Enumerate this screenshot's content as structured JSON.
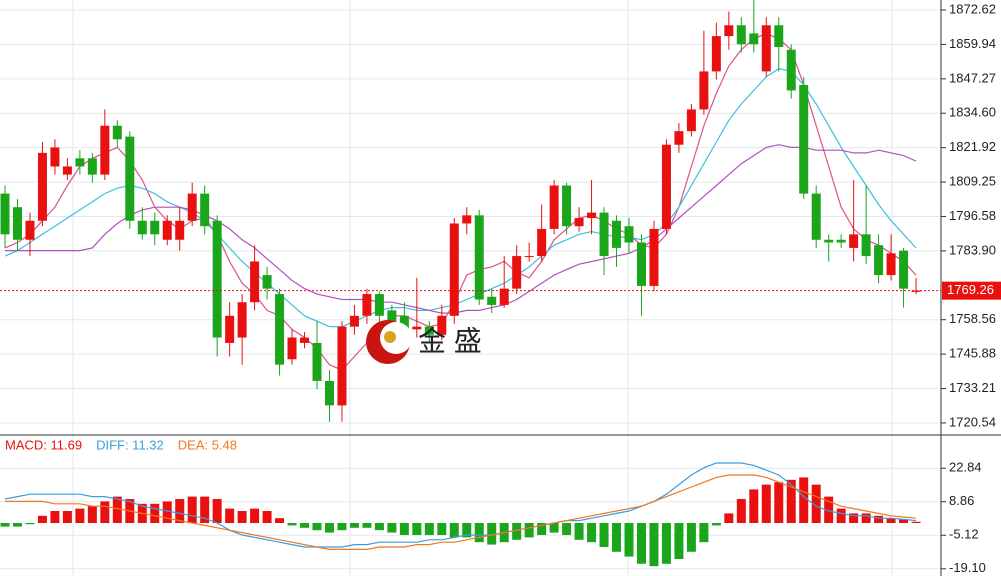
{
  "chart_data": [
    {
      "type": "candlestick",
      "open": [
        1805,
        1800,
        1788,
        1795,
        1815,
        1812,
        1818,
        1818,
        1812,
        1830,
        1826,
        1795,
        1795,
        1788,
        1788,
        1795,
        1805,
        1795,
        1750,
        1752,
        1765,
        1775,
        1768,
        1744,
        1750,
        1750,
        1736,
        1727,
        1756,
        1760,
        1768,
        1762,
        1760,
        1755,
        1756,
        1753,
        1760,
        1794,
        1797,
        1767,
        1764,
        1770,
        1782,
        1782,
        1792,
        1808,
        1793,
        1796,
        1798,
        1795,
        1793,
        1787,
        1771,
        1792,
        1823,
        1828,
        1836,
        1850,
        1863,
        1867,
        1864,
        1850,
        1867,
        1858,
        1845,
        1805,
        1788,
        1788,
        1785,
        1790,
        1786,
        1775,
        1784,
        1768.8
      ],
      "high": [
        1808,
        1803,
        1798,
        1824,
        1825,
        1818,
        1821,
        1820,
        1836,
        1832,
        1828,
        1800,
        1798,
        1797,
        1800,
        1809,
        1808,
        1797,
        1765,
        1768,
        1786,
        1778,
        1770,
        1755,
        1754,
        1758,
        1740,
        1758,
        1764,
        1770,
        1769,
        1764,
        1765,
        1774,
        1758,
        1764,
        1796,
        1800,
        1799,
        1770,
        1782,
        1786,
        1787,
        1801,
        1810,
        1809,
        1800,
        1810,
        1800,
        1797,
        1796,
        1790,
        1795,
        1825,
        1831,
        1838,
        1865,
        1868,
        1872,
        1870,
        1877,
        1870,
        1870,
        1860,
        1848,
        1808,
        1790,
        1790,
        1810,
        1808,
        1790,
        1790,
        1785,
        1774
      ],
      "low": [
        1785,
        1784,
        1782,
        1793,
        1812,
        1810,
        1812,
        1809,
        1810,
        1822,
        1792,
        1788,
        1786,
        1786,
        1784,
        1793,
        1790,
        1745,
        1745,
        1742,
        1762,
        1766,
        1738,
        1742,
        1748,
        1733,
        1721,
        1721,
        1753,
        1757,
        1757,
        1755,
        1753,
        1752,
        1750,
        1751,
        1757,
        1790,
        1764,
        1761,
        1763,
        1768,
        1780,
        1780,
        1790,
        1790,
        1791,
        1790,
        1775,
        1778,
        1783,
        1760,
        1769,
        1790,
        1820,
        1826,
        1834,
        1847,
        1858,
        1857,
        1857,
        1848,
        1850,
        1840,
        1803,
        1785,
        1780,
        1785,
        1780,
        1779,
        1772,
        1773,
        1763,
        1768
      ],
      "close": [
        1790,
        1788,
        1795,
        1820,
        1822,
        1815,
        1815,
        1812,
        1830,
        1825,
        1795,
        1790,
        1790,
        1795,
        1795,
        1805,
        1793,
        1752,
        1760,
        1765,
        1780,
        1770,
        1742,
        1752,
        1752,
        1736,
        1727,
        1756,
        1760,
        1768,
        1760,
        1758,
        1755,
        1756,
        1753,
        1760,
        1794,
        1797,
        1766,
        1764,
        1770,
        1782,
        1782,
        1792,
        1808,
        1793,
        1796,
        1798,
        1782,
        1785,
        1787,
        1771,
        1792,
        1823,
        1828,
        1836,
        1850,
        1863,
        1867,
        1860,
        1860,
        1867,
        1859,
        1843,
        1805,
        1788,
        1787,
        1787,
        1790,
        1782,
        1775,
        1783,
        1770,
        1769.26
      ],
      "up_color": "#e8110f",
      "down_color": "#1aa51a",
      "lines": [
        {
          "color": "#e0508a",
          "values": [
            1785,
            1787,
            1790,
            1795,
            1800,
            1808,
            1815,
            1818,
            1820,
            1822,
            1817,
            1810,
            1800,
            1795,
            1792,
            1795,
            1796,
            1790,
            1780,
            1772,
            1768,
            1762,
            1760,
            1755,
            1752,
            1748,
            1742,
            1740,
            1745,
            1750,
            1755,
            1760,
            1760,
            1758,
            1756,
            1757,
            1765,
            1775,
            1777,
            1778,
            1780,
            1776,
            1774,
            1780,
            1788,
            1792,
            1796,
            1797,
            1795,
            1792,
            1790,
            1786,
            1785,
            1790,
            1800,
            1815,
            1830,
            1842,
            1852,
            1858,
            1862,
            1864,
            1862,
            1858,
            1845,
            1830,
            1815,
            1800,
            1792,
            1788,
            1786,
            1783,
            1780,
            1775
          ]
        },
        {
          "color": "#3cc0e0",
          "values": [
            1782,
            1784,
            1787,
            1790,
            1793,
            1796,
            1799,
            1802,
            1805,
            1807,
            1808,
            1807,
            1805,
            1802,
            1800,
            1798,
            1795,
            1790,
            1785,
            1780,
            1776,
            1772,
            1768,
            1764,
            1760,
            1758,
            1756,
            1756,
            1758,
            1760,
            1762,
            1763,
            1763,
            1762,
            1762,
            1763,
            1764,
            1766,
            1768,
            1770,
            1772,
            1775,
            1778,
            1782,
            1786,
            1788,
            1790,
            1791,
            1790,
            1789,
            1789,
            1788,
            1790,
            1794,
            1800,
            1808,
            1816,
            1824,
            1832,
            1838,
            1843,
            1848,
            1851,
            1850,
            1845,
            1838,
            1830,
            1822,
            1815,
            1808,
            1801,
            1795,
            1790,
            1785
          ]
        },
        {
          "color": "#b050c0",
          "values": [
            1784,
            1784,
            1784,
            1784,
            1784,
            1784,
            1784,
            1785,
            1790,
            1794,
            1797,
            1799,
            1800,
            1800,
            1800,
            1799,
            1797,
            1795,
            1792,
            1788,
            1785,
            1781,
            1777,
            1773,
            1770,
            1768,
            1767,
            1766,
            1766,
            1766,
            1765,
            1765,
            1764,
            1763,
            1762,
            1761,
            1761,
            1762,
            1762,
            1763,
            1764,
            1766,
            1769,
            1772,
            1775,
            1777,
            1779,
            1780,
            1781,
            1782,
            1783,
            1785,
            1788,
            1792,
            1796,
            1800,
            1804,
            1808,
            1812,
            1816,
            1819,
            1822,
            1823,
            1822,
            1822,
            1821,
            1821,
            1821,
            1820,
            1820,
            1821,
            1820,
            1819,
            1817
          ]
        }
      ],
      "ylim": [
        1716.1,
        1876.3
      ],
      "yticks": [
        1872.62,
        1859.94,
        1847.27,
        {
          "value": 1834.6,
          "label": "1834.60"
        },
        1821.92,
        1809.25,
        1796.58,
        {
          "value": 1783.9,
          "label": "1783.90"
        },
        1758.56,
        1745.88,
        1733.21,
        1720.54
      ],
      "last_price": 1769.26,
      "grid": true,
      "watermark": "金 盛"
    },
    {
      "type": "macd",
      "legend": [
        {
          "text": "MACD: 11.69",
          "color": "#e8110f"
        },
        {
          "text": "DIFF: 11.32",
          "color": "#3a9ee0"
        },
        {
          "text": "DEA: 5.48",
          "color": "#f07820"
        }
      ],
      "histogram": [
        -1.5,
        -1.5,
        -0.5,
        3,
        5,
        5,
        6,
        7,
        9,
        11,
        10,
        8,
        8,
        9,
        10,
        11,
        11,
        10,
        6,
        5,
        6,
        5,
        2,
        -1,
        -2,
        -3,
        -4,
        -3,
        -2,
        -2,
        -3,
        -4,
        -5,
        -5,
        -5,
        -5,
        -6,
        -6,
        -8,
        -9,
        -8,
        -7,
        -6,
        -5,
        -4,
        -5,
        -7,
        -8,
        -10,
        -12,
        -14,
        -17,
        -18,
        -17,
        -15,
        -12,
        -8,
        -1,
        4,
        10,
        14,
        16,
        17,
        18,
        19,
        16,
        11,
        6,
        4,
        4,
        3,
        2,
        1.5,
        0.5
      ],
      "up_color": "#e8110f",
      "down_color": "#1aa51a",
      "series": [
        {
          "color": "#3a9ee0",
          "values": [
            10,
            11,
            12,
            12,
            12,
            12,
            12,
            11,
            11,
            10,
            9,
            7,
            6,
            5,
            4,
            3,
            2,
            0,
            -3,
            -5,
            -6,
            -7,
            -8,
            -9,
            -10,
            -10,
            -10,
            -10,
            -9,
            -9,
            -8,
            -8,
            -8,
            -8,
            -7,
            -7,
            -6,
            -5,
            -5,
            -5,
            -4,
            -3,
            -2,
            -1,
            0,
            1,
            1,
            2,
            3,
            4,
            5,
            7,
            9,
            12,
            16,
            20,
            23,
            25,
            25,
            25,
            24,
            22,
            20,
            16,
            11,
            7,
            5,
            4,
            3,
            3,
            2,
            2,
            1.5,
            1
          ]
        },
        {
          "color": "#f07820",
          "values": [
            9,
            9,
            9,
            9,
            8,
            8,
            8,
            7,
            7,
            6,
            5,
            4,
            3,
            2,
            1,
            0,
            -1,
            -2,
            -3,
            -4,
            -5,
            -6,
            -7,
            -8,
            -9,
            -10,
            -11,
            -11,
            -11,
            -11,
            -10,
            -10,
            -10,
            -9,
            -9,
            -8,
            -8,
            -7,
            -6,
            -5,
            -4,
            -3,
            -2,
            -1,
            0,
            1,
            2,
            3,
            4,
            5,
            6,
            7,
            9,
            11,
            13,
            15,
            17,
            19,
            20,
            20,
            20,
            19,
            17,
            15,
            13,
            11,
            9,
            7,
            6,
            5,
            4,
            3,
            2.5,
            2
          ]
        }
      ],
      "ylim": [
        -22.1,
        27.1
      ],
      "yticks": [
        22.84,
        8.86,
        -5.12,
        {
          "value": -19.1,
          "label": "-19.10"
        }
      ],
      "grid": true
    }
  ]
}
